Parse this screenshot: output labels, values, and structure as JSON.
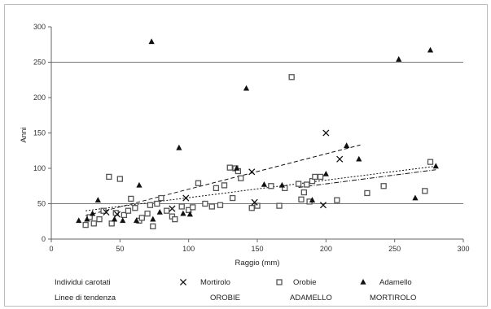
{
  "chart_data": {
    "type": "scatter",
    "title": "",
    "xlabel": "Raggio (mm)",
    "ylabel": "Anni",
    "xlim": [
      0,
      300
    ],
    "ylim": [
      0,
      300
    ],
    "xticks": [
      0,
      50,
      100,
      150,
      200,
      250,
      300
    ],
    "yticks": [
      0,
      50,
      100,
      150,
      200,
      250,
      300
    ],
    "reference_lines_y": [
      50,
      250
    ],
    "grid": false,
    "legend_placement": "bottom",
    "legend": {
      "row1_label": "Individui carotati",
      "row2_label": "Linee di tendenza"
    },
    "series": [
      {
        "name": "Mortirolo",
        "marker": "x",
        "trend_label": "MORTIROLO",
        "trend": [
          [
            25,
            40
          ],
          [
            280,
            103
          ]
        ],
        "points": [
          [
            40,
            38
          ],
          [
            48,
            35
          ],
          [
            88,
            43
          ],
          [
            98,
            58
          ],
          [
            146,
            95
          ],
          [
            148,
            52
          ],
          [
            198,
            48
          ],
          [
            200,
            150
          ],
          [
            210,
            113
          ]
        ]
      },
      {
        "name": "Orobie",
        "marker": "square",
        "trend_label": "OROBIE",
        "trend": [
          [
            25,
            33
          ],
          [
            225,
            133
          ]
        ],
        "points": [
          [
            25,
            20
          ],
          [
            28,
            31
          ],
          [
            31,
            22
          ],
          [
            35,
            28
          ],
          [
            38,
            40
          ],
          [
            42,
            88
          ],
          [
            44,
            22
          ],
          [
            47,
            37
          ],
          [
            50,
            85
          ],
          [
            53,
            34
          ],
          [
            56,
            40
          ],
          [
            58,
            57
          ],
          [
            61,
            44
          ],
          [
            64,
            26
          ],
          [
            66,
            30
          ],
          [
            70,
            36
          ],
          [
            72,
            48
          ],
          [
            74,
            18
          ],
          [
            77,
            50
          ],
          [
            80,
            58
          ],
          [
            84,
            40
          ],
          [
            88,
            32
          ],
          [
            90,
            28
          ],
          [
            95,
            46
          ],
          [
            100,
            41
          ],
          [
            103,
            45
          ],
          [
            107,
            79
          ],
          [
            112,
            50
          ],
          [
            117,
            46
          ],
          [
            120,
            72
          ],
          [
            123,
            48
          ],
          [
            126,
            76
          ],
          [
            130,
            101
          ],
          [
            132,
            58
          ],
          [
            134,
            100
          ],
          [
            136,
            96
          ],
          [
            138,
            86
          ],
          [
            146,
            44
          ],
          [
            150,
            47
          ],
          [
            160,
            75
          ],
          [
            166,
            47
          ],
          [
            170,
            72
          ],
          [
            175,
            229
          ],
          [
            180,
            78
          ],
          [
            182,
            56
          ],
          [
            184,
            66
          ],
          [
            186,
            77
          ],
          [
            188,
            53
          ],
          [
            190,
            82
          ],
          [
            192,
            88
          ],
          [
            196,
            88
          ],
          [
            208,
            55
          ],
          [
            230,
            65
          ],
          [
            242,
            75
          ],
          [
            272,
            68
          ],
          [
            276,
            109
          ]
        ]
      },
      {
        "name": "Adamello",
        "marker": "triangle",
        "trend_label": "ADAMELLO",
        "trend": [
          [
            180,
            73
          ],
          [
            280,
            98
          ]
        ],
        "points": [
          [
            20,
            26
          ],
          [
            26,
            28
          ],
          [
            30,
            36
          ],
          [
            34,
            55
          ],
          [
            46,
            28
          ],
          [
            52,
            26
          ],
          [
            62,
            26
          ],
          [
            64,
            76
          ],
          [
            73,
            279
          ],
          [
            74,
            28
          ],
          [
            79,
            38
          ],
          [
            93,
            129
          ],
          [
            96,
            36
          ],
          [
            101,
            35
          ],
          [
            135,
            100
          ],
          [
            142,
            213
          ],
          [
            155,
            77
          ],
          [
            168,
            76
          ],
          [
            190,
            55
          ],
          [
            200,
            92
          ],
          [
            215,
            132
          ],
          [
            224,
            113
          ],
          [
            265,
            58
          ],
          [
            253,
            254
          ],
          [
            276,
            267
          ],
          [
            280,
            103
          ]
        ]
      }
    ]
  }
}
